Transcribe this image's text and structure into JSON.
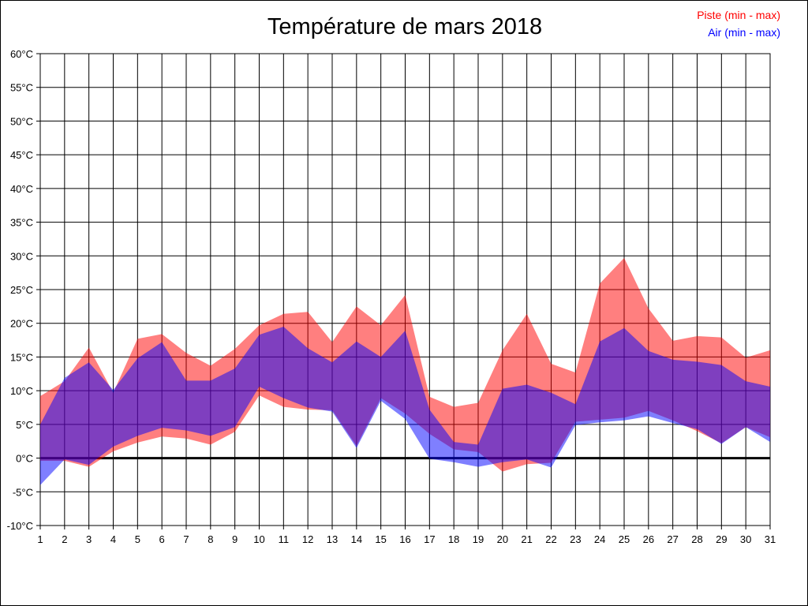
{
  "window": {
    "background": "#ffffff",
    "border_color": "#000000"
  },
  "chart_data": {
    "type": "area",
    "title": "Température de mars 2018",
    "x": [
      1,
      2,
      3,
      4,
      5,
      6,
      7,
      8,
      9,
      10,
      11,
      12,
      13,
      14,
      15,
      16,
      17,
      18,
      19,
      20,
      21,
      22,
      23,
      24,
      25,
      26,
      27,
      28,
      29,
      30,
      31
    ],
    "xlabel": "",
    "ylabel": "",
    "ylim": [
      -10,
      60
    ],
    "ytick_step": 5,
    "ytick_suffix": "°C",
    "grid": true,
    "grid_color": "#000000",
    "zero_line_value": 0,
    "legend_position": "top-right",
    "series": [
      {
        "name": "Piste (min - max)",
        "fill": "rgba(255,0,0,0.5)",
        "legend_color": "#ff0000",
        "min": [
          -0.4,
          -0.4,
          -1.3,
          1.0,
          2.3,
          3.2,
          2.9,
          2.0,
          3.9,
          9.3,
          7.6,
          7.2,
          7.1,
          1.8,
          8.9,
          6.6,
          3.6,
          1.3,
          0.9,
          -2.0,
          -0.9,
          -0.7,
          5.4,
          5.7,
          6.0,
          7.0,
          5.6,
          4.0,
          2.2,
          4.6,
          3.1
        ],
        "max": [
          9.2,
          11.4,
          16.4,
          9.7,
          17.7,
          18.4,
          15.6,
          13.7,
          16.2,
          19.7,
          21.4,
          21.7,
          17.2,
          22.5,
          19.7,
          24.2,
          9.1,
          7.6,
          8.2,
          16.0,
          21.4,
          14.0,
          12.7,
          25.9,
          29.7,
          22.2,
          17.4,
          18.1,
          17.9,
          14.9,
          16.0
        ]
      },
      {
        "name": "Air (min - max)",
        "fill": "rgba(0,0,255,0.5)",
        "legend_color": "#0000ff",
        "min": [
          -4.0,
          -0.2,
          -1.0,
          1.7,
          3.3,
          4.5,
          4.1,
          3.3,
          4.6,
          10.6,
          8.9,
          7.5,
          6.9,
          1.5,
          8.5,
          5.8,
          -0.1,
          -0.6,
          -1.3,
          -0.6,
          -0.2,
          -1.4,
          4.9,
          5.3,
          5.6,
          6.2,
          5.2,
          4.3,
          2.1,
          4.6,
          2.4
        ],
        "max": [
          5.0,
          11.9,
          14.2,
          10.1,
          14.8,
          17.2,
          11.5,
          11.5,
          13.3,
          18.3,
          19.5,
          16.3,
          14.2,
          17.3,
          15.0,
          18.9,
          7.2,
          2.4,
          2.0,
          10.3,
          10.9,
          9.7,
          8.0,
          17.3,
          19.3,
          15.9,
          14.6,
          14.3,
          13.8,
          11.4,
          10.6
        ]
      }
    ]
  }
}
